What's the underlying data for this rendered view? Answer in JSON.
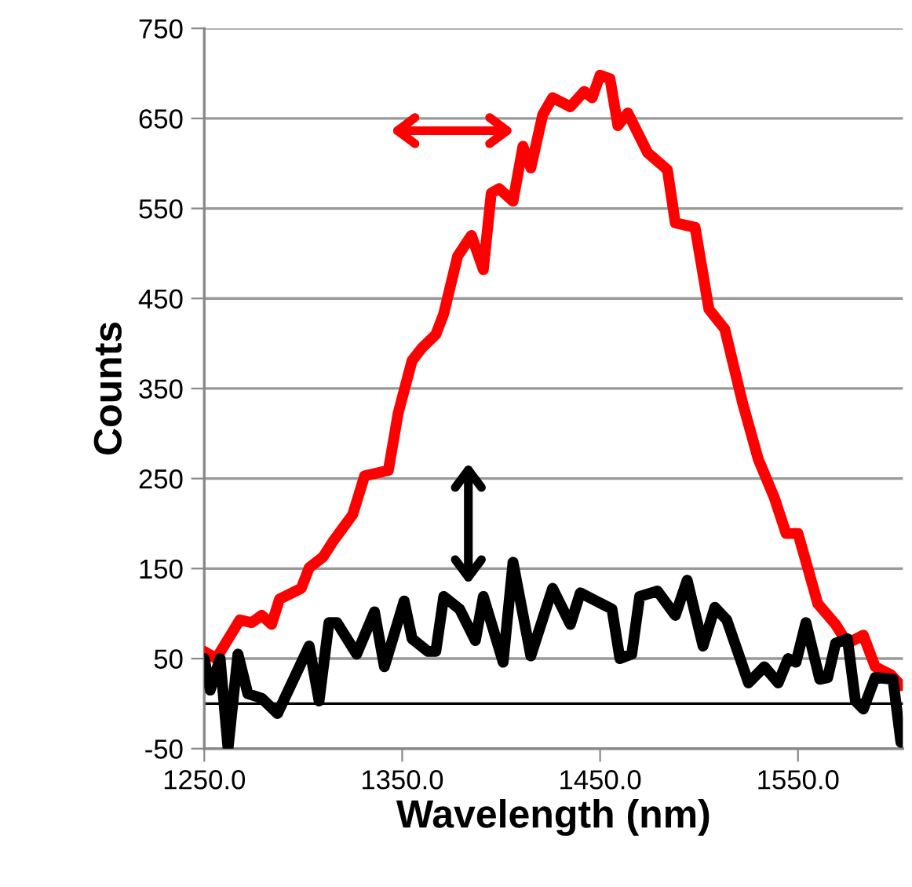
{
  "chart_data": {
    "type": "line",
    "xlabel": "Wavelength (nm)",
    "ylabel": "Counts",
    "xlim": [
      1250,
      1603
    ],
    "xticks": [
      {
        "value": 1250,
        "label": "1250.0"
      },
      {
        "value": 1350,
        "label": "1350.0"
      },
      {
        "value": 1450,
        "label": "1450.0"
      },
      {
        "value": 1550,
        "label": "1550.0"
      }
    ],
    "ylim": [
      -50,
      750
    ],
    "yticks": [
      -50,
      50,
      150,
      250,
      350,
      450,
      550,
      650,
      750
    ],
    "grid": "y",
    "marker": "none",
    "line_style": "solid",
    "ref_lines": [
      {
        "axis": "y",
        "value": 0,
        "color": "#000000"
      }
    ],
    "series": [
      {
        "color": "#ff0000",
        "x": [
          1250,
          1256,
          1268,
          1274,
          1279,
          1284,
          1288,
          1299,
          1303,
          1310,
          1315,
          1325,
          1331,
          1343,
          1348,
          1355,
          1360,
          1367,
          1371,
          1378,
          1385,
          1391,
          1395,
          1399,
          1406,
          1411,
          1415,
          1421,
          1426,
          1435,
          1442,
          1446,
          1450,
          1455,
          1459,
          1464,
          1474,
          1484,
          1488,
          1498,
          1505,
          1513,
          1522,
          1530,
          1538,
          1544,
          1550,
          1560,
          1569,
          1575,
          1583,
          1589,
          1597,
          1602
        ],
        "values": [
          58,
          50,
          93,
          90,
          98,
          88,
          116,
          128,
          151,
          163,
          180,
          210,
          253,
          259,
          323,
          381,
          395,
          410,
          433,
          497,
          520,
          482,
          567,
          572,
          558,
          619,
          595,
          654,
          673,
          663,
          680,
          673,
          698,
          694,
          642,
          656,
          612,
          593,
          534,
          529,
          438,
          416,
          334,
          271,
          229,
          189,
          189,
          111,
          88,
          67,
          76,
          41,
          32,
          20
        ]
      },
      {
        "color": "#000000",
        "x": [
          1250,
          1253,
          1258,
          1262,
          1267,
          1272,
          1279,
          1287,
          1303,
          1308,
          1313,
          1317,
          1327,
          1336,
          1341,
          1351,
          1355,
          1363,
          1367,
          1371,
          1379,
          1387,
          1391,
          1401,
          1406,
          1415,
          1426,
          1435,
          1440,
          1448,
          1456,
          1460,
          1466,
          1470,
          1479,
          1488,
          1494,
          1502,
          1508,
          1514,
          1525,
          1533,
          1540,
          1545,
          1549,
          1554,
          1561,
          1565,
          1569,
          1575,
          1579,
          1583,
          1589,
          1598,
          1602
        ],
        "values": [
          50,
          15,
          50,
          -50,
          55,
          11,
          6,
          -11,
          64,
          3,
          90,
          90,
          55,
          102,
          41,
          114,
          72,
          58,
          58,
          119,
          105,
          70,
          119,
          46,
          157,
          53,
          128,
          88,
          123,
          114,
          105,
          50,
          55,
          119,
          125,
          98,
          137,
          64,
          107,
          93,
          23,
          41,
          23,
          50,
          46,
          90,
          27,
          29,
          67,
          72,
          3,
          -6,
          29,
          27,
          -43
        ]
      }
    ]
  }
}
